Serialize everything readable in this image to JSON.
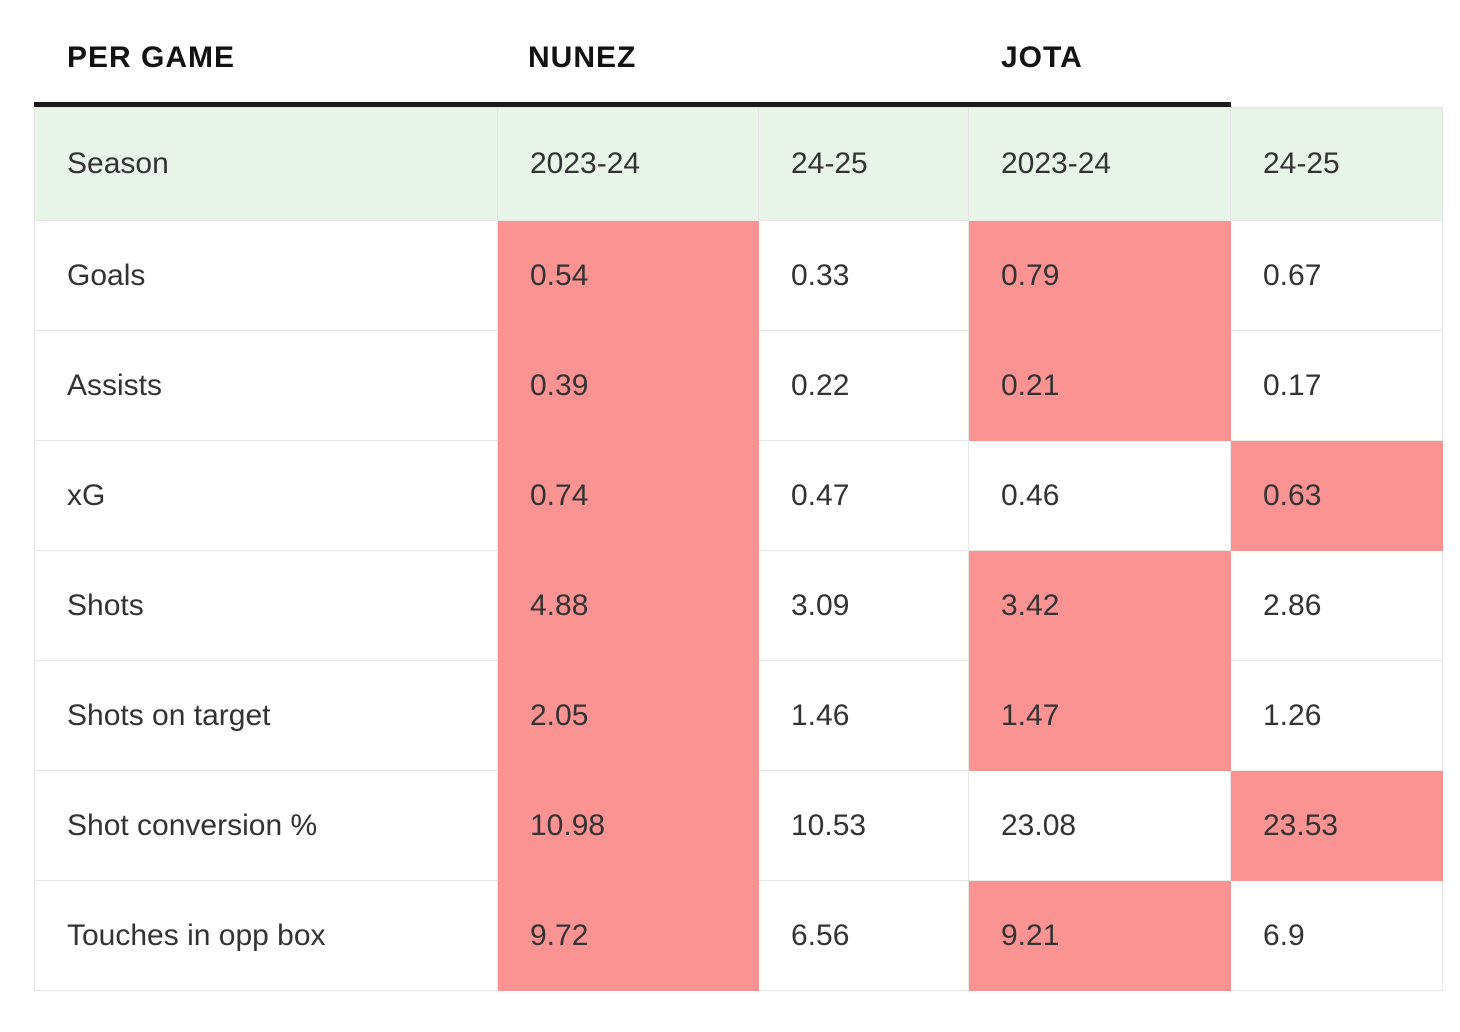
{
  "header": {
    "per_game": "PER GAME",
    "player1": "NUNEZ",
    "player2": "JOTA"
  },
  "season_row": {
    "label": "Season",
    "seasons": [
      "2023-24",
      "24-25",
      "2023-24",
      "24-25"
    ]
  },
  "rows": [
    {
      "label": "Goals",
      "values": [
        "0.54",
        "0.33",
        "0.79",
        "0.67"
      ],
      "highlight": [
        true,
        false,
        true,
        false
      ]
    },
    {
      "label": "Assists",
      "values": [
        "0.39",
        "0.22",
        "0.21",
        "0.17"
      ],
      "highlight": [
        true,
        false,
        true,
        false
      ]
    },
    {
      "label": "xG",
      "values": [
        "0.74",
        "0.47",
        "0.46",
        "0.63"
      ],
      "highlight": [
        true,
        false,
        false,
        true
      ]
    },
    {
      "label": "Shots",
      "values": [
        "4.88",
        "3.09",
        "3.42",
        "2.86"
      ],
      "highlight": [
        true,
        false,
        true,
        false
      ]
    },
    {
      "label": "Shots on target",
      "values": [
        "2.05",
        "1.46",
        "1.47",
        "1.26"
      ],
      "highlight": [
        true,
        false,
        true,
        false
      ]
    },
    {
      "label": "Shot conversion %",
      "values": [
        "10.98",
        "10.53",
        "23.08",
        "23.53"
      ],
      "highlight": [
        true,
        false,
        false,
        true
      ]
    },
    {
      "label": "Touches in opp box",
      "values": [
        "9.72",
        "6.56",
        "9.21",
        "6.9"
      ],
      "highlight": [
        true,
        false,
        true,
        false
      ]
    }
  ],
  "colors": {
    "highlight": "#fb9393",
    "season_row_bg": "#eaf5ea",
    "rule": "#1a1a1a"
  }
}
